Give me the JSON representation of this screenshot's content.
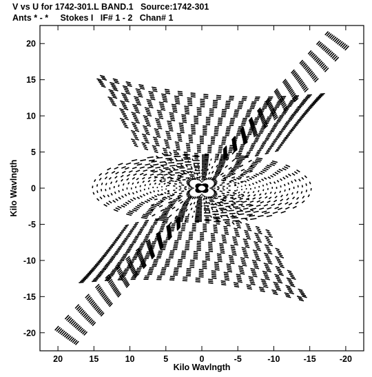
{
  "header": {
    "title_line1": "V vs U for 1742-301.L BAND.1   Source:1742-301",
    "title_line2": "Ants * - *     Stokes I   IF# 1 - 2   Chan# 1"
  },
  "chart_data": {
    "type": "scatter",
    "title": "V vs U for 1742-301.L BAND.1   Source:1742-301",
    "subtitle": "Ants * - *     Stokes I   IF# 1 - 2   Chan# 1",
    "xlabel": "Kilo Wavlngth",
    "ylabel": "Kilo Wavlngth",
    "xlim": [
      22.5,
      -22.5
    ],
    "ylim": [
      -22.5,
      22.5
    ],
    "x_inverted": true,
    "xticks": [
      20,
      15,
      10,
      5,
      0,
      -5,
      -10,
      -15,
      -20
    ],
    "yticks": [
      -20,
      -15,
      -10,
      -5,
      0,
      5,
      10,
      15,
      20
    ],
    "xtick_labels": [
      "20",
      "15",
      "10",
      "5",
      "0",
      "-5",
      "-10",
      "-15",
      "-20"
    ],
    "ytick_labels": [
      "-20",
      "-15",
      "-10",
      "-5",
      "0",
      "5",
      "10",
      "15",
      "20"
    ],
    "grid": false,
    "marker": "short dashes (uv-track segments)",
    "color": "#000000",
    "coverage_description_extent": {
      "u_max_abs": 21.3,
      "v_max_abs": 21.3,
      "lobe_u_range": [
        14.5,
        -15.5
      ],
      "lobe_v_range": [
        -5,
        5
      ]
    }
  }
}
